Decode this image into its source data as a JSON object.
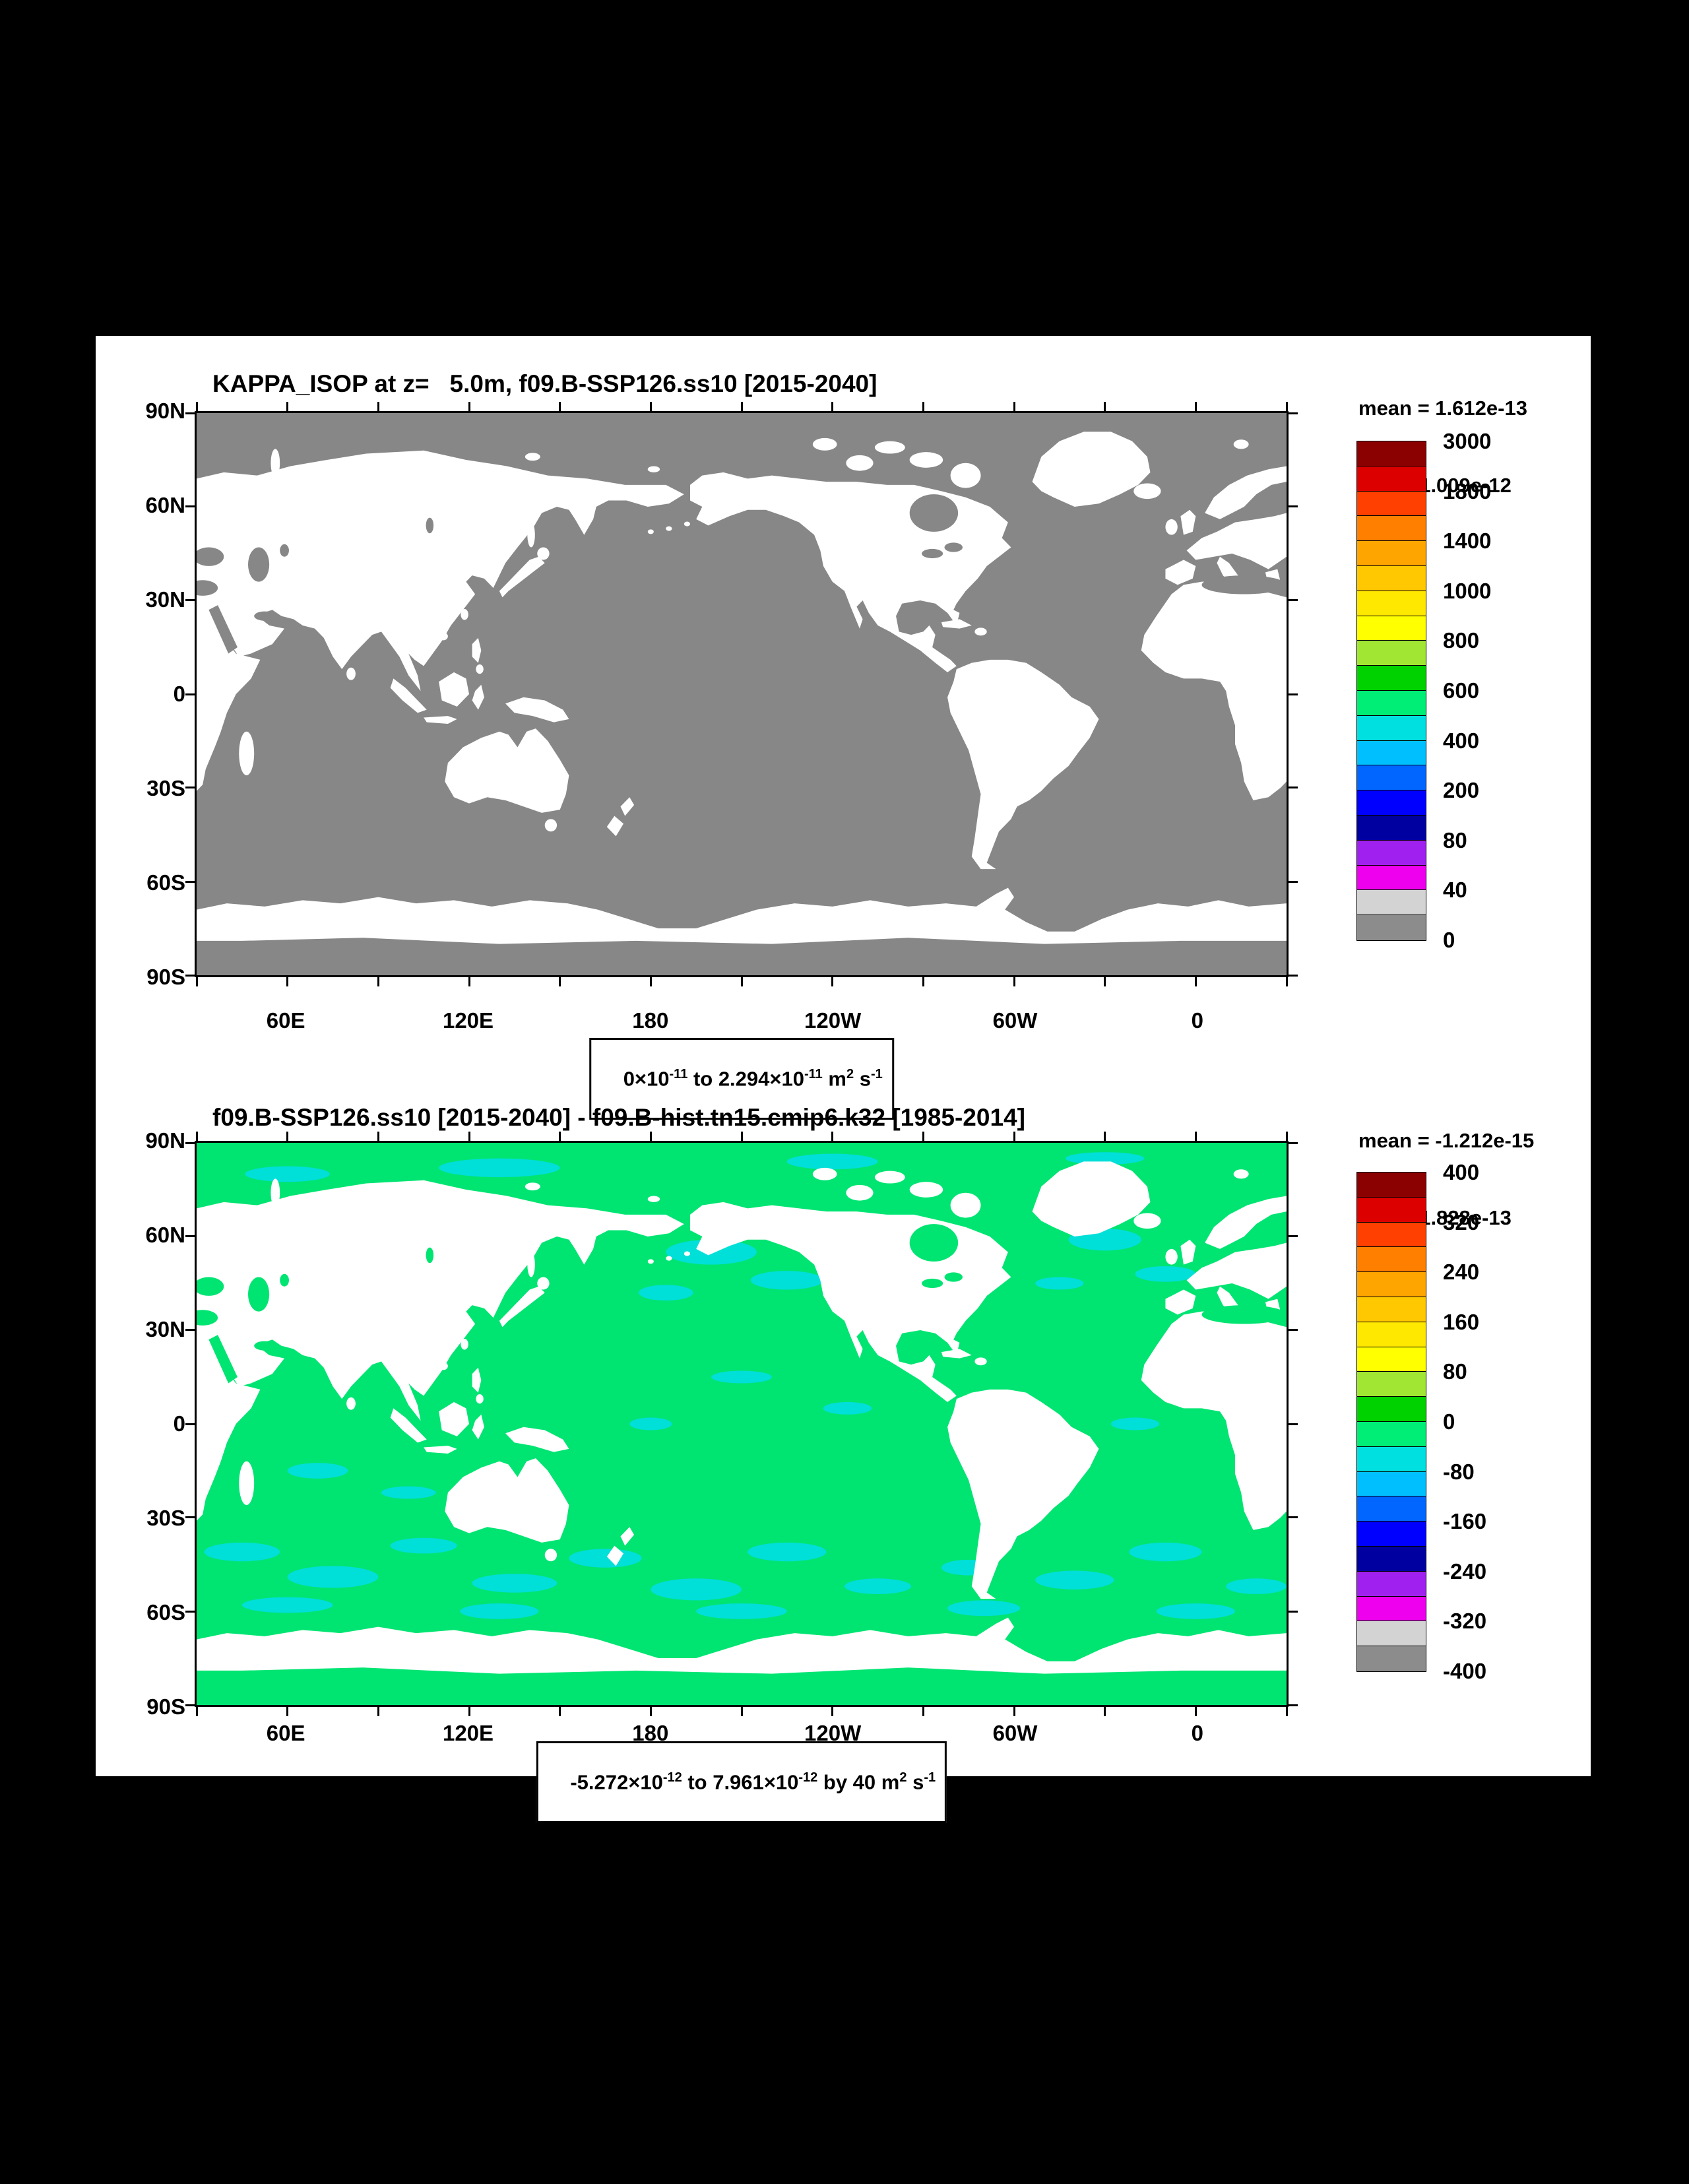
{
  "page": {
    "background": "#000000",
    "canvas_background": "#FFFFFF"
  },
  "panels": [
    {
      "title": "KAPPA_ISOP at z=   5.0m, f09.B-SSP126.ss10 [2015-2040]",
      "stats": {
        "mean": "mean = 1.612e-13",
        "rms": "rms = 1.009e-12"
      },
      "map": {
        "ocean_color": "#878787",
        "land_color": "#FFFFFF",
        "lat_labels": [
          "90N",
          "60N",
          "30N",
          "0",
          "30S",
          "60S",
          "90S"
        ],
        "lon_labels": [
          "60E",
          "120E",
          "180",
          "120W",
          "60W",
          "0"
        ]
      },
      "range_label": {
        "a": "0×10",
        "ea": "-11",
        "b": " to 2.294×10",
        "eb": "-11",
        "c": " m",
        "ec": "2",
        "d": " s",
        "ed": "-1"
      },
      "colorbar": {
        "labels": [
          "3000",
          "1800",
          "1400",
          "1000",
          "800",
          "600",
          "400",
          "200",
          "80",
          "40",
          "0"
        ],
        "colors": [
          "#8B0000",
          "#DC0000",
          "#FF4000",
          "#FF7F00",
          "#FFA500",
          "#FFC800",
          "#FFE800",
          "#FFFF00",
          "#A0E632",
          "#00D200",
          "#00EE76",
          "#00E0E0",
          "#00BFFF",
          "#0066FF",
          "#0000FF",
          "#0000A0",
          "#A020F0",
          "#EE00EE",
          "#D3D3D3",
          "#8C8C8C"
        ]
      }
    },
    {
      "title": "f09.B-SSP126.ss10 [2015-2040] - f09.B-hist.tn15.cmip6.k32 [1985-2014]",
      "stats": {
        "mean": "mean = -1.212e-15",
        "rms": "rms = 1.828e-13"
      },
      "map": {
        "ocean_color": "#00E472",
        "land_color": "#FFFFFF",
        "patch_color": "#00DFD8",
        "lat_labels": [
          "90N",
          "60N",
          "30N",
          "0",
          "30S",
          "60S",
          "90S"
        ],
        "lon_labels": [
          "60E",
          "120E",
          "180",
          "120W",
          "60W",
          "0"
        ]
      },
      "range_label": {
        "a": "-5.272×10",
        "ea": "-12",
        "b": " to 7.961×10",
        "eb": "-12",
        "c": " by 40 m",
        "ec": "2",
        "d": " s",
        "ed": "-1"
      },
      "colorbar": {
        "labels": [
          "400",
          "320",
          "240",
          "160",
          "80",
          "0",
          "-80",
          "-160",
          "-240",
          "-320",
          "-400"
        ],
        "colors": [
          "#8B0000",
          "#DC0000",
          "#FF4000",
          "#FF7F00",
          "#FFA500",
          "#FFC800",
          "#FFE800",
          "#FFFF00",
          "#A0E632",
          "#00D200",
          "#00EE76",
          "#00E0E0",
          "#00BFFF",
          "#0066FF",
          "#0000FF",
          "#0000A0",
          "#A020F0",
          "#EE00EE",
          "#D3D3D3",
          "#8C8C8C"
        ]
      }
    }
  ],
  "chart_data": [
    {
      "type": "heatmap",
      "title": "KAPPA_ISOP at z=   5.0m, f09.B-SSP126.ss10 [2015-2040]",
      "variable": "KAPPA_ISOP",
      "depth": "5.0m",
      "units": "m2 s-1",
      "projection": "global latitude-longitude map, Pacific-centered",
      "x_ticks": [
        "60E",
        "120E",
        "180",
        "120W",
        "60W",
        "0"
      ],
      "y_ticks": [
        "90N",
        "60N",
        "30N",
        "0",
        "30S",
        "60S",
        "90S"
      ],
      "color_levels": [
        0,
        40,
        80,
        200,
        400,
        600,
        800,
        1000,
        1400,
        1800,
        3000
      ],
      "mean": "1.612e-13",
      "rms": "1.009e-12",
      "range": "0e-11 to 2.294e-11 m2 s-1",
      "field_note": "all ocean points fall in lowest gray bin; land masked white"
    },
    {
      "type": "heatmap",
      "title": "f09.B-SSP126.ss10 [2015-2040] - f09.B-hist.tn15.cmip6.k32 [1985-2014]",
      "variable": "KAPPA_ISOP difference",
      "units": "m2 s-1",
      "contour_interval": 40,
      "x_ticks": [
        "60E",
        "120E",
        "180",
        "120W",
        "60W",
        "0"
      ],
      "y_ticks": [
        "90N",
        "60N",
        "30N",
        "0",
        "30S",
        "60S",
        "90S"
      ],
      "color_levels": [
        -400,
        -320,
        -240,
        -160,
        -80,
        0,
        80,
        160,
        240,
        320,
        400
      ],
      "mean": "-1.212e-15",
      "rms": "1.828e-13",
      "range": "-5.272e-12 to 7.961e-12 m2 s-1",
      "field_note": "differences near zero everywhere: green ocean with cyan patches; land masked white"
    }
  ]
}
